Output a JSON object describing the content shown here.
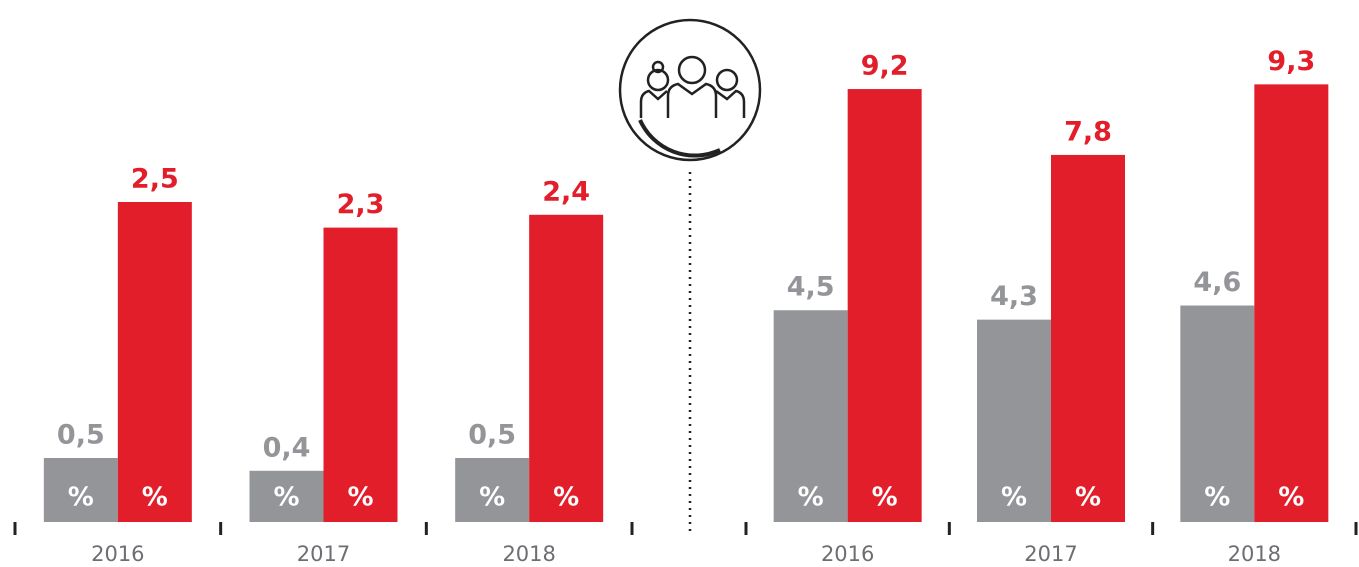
{
  "chart_data": [
    {
      "type": "bar",
      "unit": "%",
      "categories": [
        "2016",
        "2017",
        "2018"
      ],
      "series": [
        {
          "color": "#939598",
          "values": [
            0.5,
            0.4,
            0.5
          ],
          "value_labels": [
            "0,5",
            "0,4",
            "0,5"
          ]
        },
        {
          "color": "#e31e2b",
          "values": [
            2.5,
            2.3,
            2.4
          ],
          "value_labels": [
            "2,5",
            "2,3",
            "2,4"
          ]
        }
      ],
      "ylim": [
        0,
        3.75
      ]
    },
    {
      "type": "bar",
      "unit": "%",
      "categories": [
        "2016",
        "2017",
        "2018"
      ],
      "series": [
        {
          "color": "#939598",
          "values": [
            4.5,
            4.3,
            4.6
          ],
          "value_labels": [
            "4,5",
            "4,3",
            "4,6"
          ]
        },
        {
          "color": "#e31e2b",
          "values": [
            9.2,
            7.8,
            9.3
          ],
          "value_labels": [
            "9,2",
            "7,8",
            "9,3"
          ]
        }
      ],
      "ylim": [
        0,
        10.2
      ]
    }
  ]
}
